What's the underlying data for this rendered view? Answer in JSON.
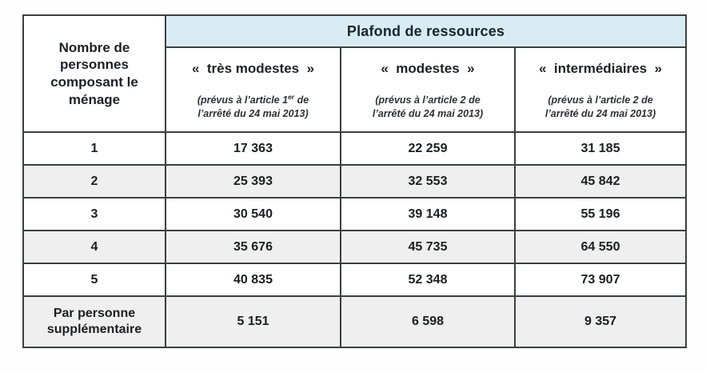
{
  "colors": {
    "header_blue": "#d9ecf4",
    "stripe_grey": "#efefef",
    "border_dark": "#3c3f42",
    "text_dark": "#1c2126"
  },
  "table": {
    "corner_header": "Nombre de personnes composant le ménage",
    "main_header": "Plafond de ressources",
    "columns": [
      {
        "title": "«  très modestes  »",
        "sub_prefix": "(prévus à l’article 1",
        "sub_sup": "er",
        "sub_mid": " de",
        "sub_line2": "l’arrêté du 24 mai 2013)"
      },
      {
        "title": "«  modestes  »",
        "sub_prefix": "(prévus à l’article 2 de",
        "sub_sup": "",
        "sub_mid": "",
        "sub_line2": "l’arrêté du 24 mai 2013)"
      },
      {
        "title": "«  intermédiaires  »",
        "sub_prefix": "(prévus à l’article 2 de",
        "sub_sup": "",
        "sub_mid": "",
        "sub_line2": "l’arrêté du 24 mai 2013)"
      }
    ],
    "rows": [
      {
        "label": "1",
        "values": [
          "17 363",
          "22 259",
          "31 185"
        ]
      },
      {
        "label": "2",
        "values": [
          "25 393",
          "32 553",
          "45 842"
        ]
      },
      {
        "label": "3",
        "values": [
          "30 540",
          "39 148",
          "55 196"
        ]
      },
      {
        "label": "4",
        "values": [
          "35 676",
          "45 735",
          "64 550"
        ]
      },
      {
        "label": "5",
        "values": [
          "40 835",
          "52 348",
          "73 907"
        ]
      },
      {
        "label": "Par personne supplémentaire",
        "values": [
          "5 151",
          "6 598",
          "9 357"
        ]
      }
    ]
  }
}
